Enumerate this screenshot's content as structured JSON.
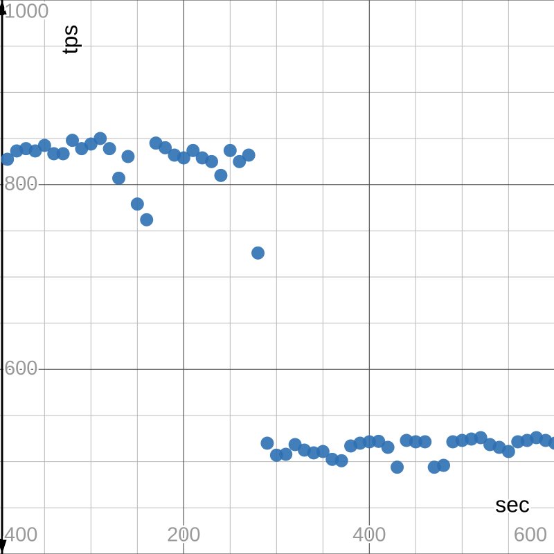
{
  "chart_data": {
    "type": "scatter",
    "x_label": "sec",
    "y_label": "tps",
    "xlim": [
      2,
      599
    ],
    "ylim": [
      400,
      1000
    ],
    "xticks": [
      200,
      400,
      600
    ],
    "yticks": [
      400,
      600,
      800,
      1000
    ],
    "minor_xticks": [
      50,
      100,
      150,
      250,
      300,
      350,
      450,
      500,
      550
    ],
    "minor_yticks": [
      450,
      500,
      550,
      650,
      700,
      750,
      850,
      900,
      950
    ],
    "grid": true,
    "series": [
      {
        "color": "#2d70b3",
        "x": [
          10,
          20,
          30,
          40,
          50,
          60,
          70,
          80,
          90,
          100,
          110,
          120,
          130,
          140,
          150,
          160,
          170,
          180,
          190,
          200,
          210,
          220,
          230,
          240,
          250,
          260,
          270,
          280,
          290,
          300,
          310,
          320,
          330,
          340,
          350,
          360,
          370,
          380,
          390,
          400,
          410,
          420,
          430,
          440,
          450,
          460,
          470,
          480,
          490,
          500,
          510,
          520,
          530,
          540,
          550,
          560,
          570,
          580,
          590,
          600
        ],
        "values": [
          827.5,
          836.5,
          839,
          836.5,
          842.5,
          833.5,
          833.5,
          848,
          839,
          844,
          850,
          839,
          807,
          830.5,
          779,
          762,
          845,
          840,
          832,
          829,
          837,
          829,
          825,
          810,
          837,
          825,
          832,
          726,
          520,
          507,
          508,
          518.5,
          512.5,
          509.5,
          511,
          502.5,
          501,
          517,
          520,
          521.5,
          522,
          515.5,
          494,
          523,
          521.5,
          521.5,
          494,
          496,
          521.5,
          523,
          524.5,
          526,
          518.5,
          515.5,
          511,
          521.5,
          523,
          526,
          523,
          520
        ]
      }
    ]
  }
}
